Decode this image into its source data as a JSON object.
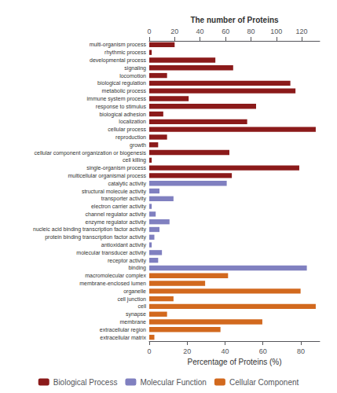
{
  "chart_data": {
    "type": "bar",
    "orientation": "horizontal",
    "categories": [
      "multi-organism process",
      "rhythmic process",
      "developmental process",
      "signaling",
      "locomotion",
      "biological regulation",
      "metabolic process",
      "immune system process",
      "response to stimulus",
      "biological adhesion",
      "localization",
      "cellular process",
      "reproduction",
      "growth",
      "cellular component organization or biogenesis",
      "cell killing",
      "single-organism process",
      "multicellular organismal process",
      "catalytic activity",
      "structural molecule activity",
      "transporter activity",
      "electron carrier activity",
      "channel regulator activity",
      "enzyme regulator activity",
      "nucleic acid binding transcription factor activity",
      "protein binding transcription factor activity",
      "antioxidant activity",
      "molecular transducer activity",
      "receptor activity",
      "binding",
      "macromolecular complex",
      "membrane-enclosed lumen",
      "organelle",
      "cell junction",
      "cell",
      "synapse",
      "membrane",
      "extracellular region",
      "extracellular matrix"
    ],
    "series": [
      {
        "name": "Biological Process",
        "color": "#8B1A1A",
        "values": [
          13.4,
          1.3,
          34.9,
          44.3,
          9.4,
          74.5,
          77.2,
          20.8,
          56.4,
          7.4,
          51.7,
          87.9,
          9.4,
          4.7,
          42.3,
          1.3,
          79.2,
          43.6,
          null,
          null,
          null,
          null,
          null,
          null,
          null,
          null,
          null,
          null,
          null,
          null,
          null,
          null,
          null,
          null,
          null,
          null,
          null,
          null,
          null
        ]
      },
      {
        "name": "Molecular Function",
        "color": "#8080C0",
        "values": [
          null,
          null,
          null,
          null,
          null,
          null,
          null,
          null,
          null,
          null,
          null,
          null,
          null,
          null,
          null,
          null,
          null,
          null,
          40.9,
          5.4,
          12.8,
          1.3,
          3.4,
          10.7,
          5.4,
          2.7,
          1.3,
          6.7,
          4.7,
          83.2,
          null,
          null,
          null,
          null,
          null,
          null,
          null,
          null,
          null
        ]
      },
      {
        "name": "Cellular Component",
        "color": "#D2691E",
        "values": [
          null,
          null,
          null,
          null,
          null,
          null,
          null,
          null,
          null,
          null,
          null,
          null,
          null,
          null,
          null,
          null,
          null,
          null,
          null,
          null,
          null,
          null,
          null,
          null,
          null,
          null,
          null,
          null,
          null,
          null,
          41.6,
          29.5,
          79.9,
          12.8,
          87.9,
          9.4,
          59.7,
          37.6,
          2.7
        ]
      }
    ],
    "xlabel": "Percentage of Proteins (%)",
    "xlim": [
      0,
      90
    ],
    "xticks": [
      0,
      20,
      40,
      60,
      80
    ],
    "x2label": "The number of Proteins",
    "x2lim": [
      0,
      90
    ],
    "x2ticks": [
      0,
      {
        "value": 13.4,
        "label": "20"
      },
      {
        "value": 26.8,
        "label": "40"
      },
      {
        "value": 40.3,
        "label": "60"
      },
      {
        "value": 53.7,
        "label": "80"
      },
      {
        "value": 67.1,
        "label": "100"
      },
      {
        "value": 80.5,
        "label": "120"
      }
    ],
    "grid": false,
    "legend": "bottom"
  }
}
